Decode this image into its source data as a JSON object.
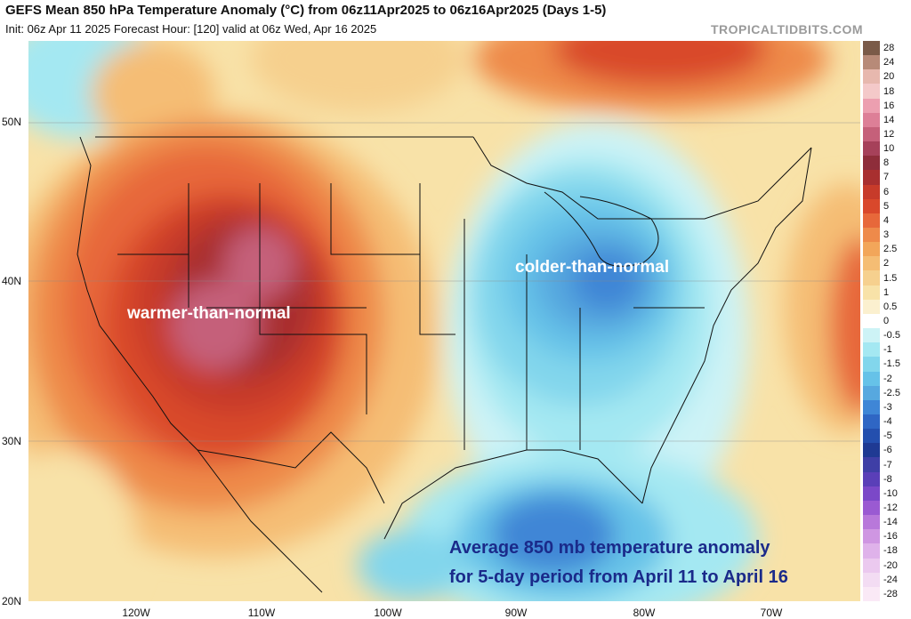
{
  "header": {
    "title": "GEFS Mean 850 hPa Temperature Anomaly (°C) from 06z11Apr2025 to 06z16Apr2025 (Days 1-5)",
    "subtitle": "Init: 06z Apr 11 2025   Forecast Hour: [120]   valid at 06z Wed, Apr 16 2025",
    "brand": "TROPICALTIDBITS.COM"
  },
  "axes": {
    "lat_labels": [
      "50N",
      "40N",
      "30N",
      "20N"
    ],
    "lon_labels": [
      "120W",
      "110W",
      "100W",
      "90W",
      "80W",
      "70W"
    ]
  },
  "legend": {
    "labels": [
      "28",
      "24",
      "20",
      "18",
      "16",
      "14",
      "12",
      "10",
      "8",
      "7",
      "6",
      "5",
      "4",
      "3",
      "2.5",
      "2",
      "1.5",
      "1",
      "0.5",
      "0",
      "-0.5",
      "-1",
      "-1.5",
      "-2",
      "-2.5",
      "-3",
      "-4",
      "-5",
      "-6",
      "-7",
      "-8",
      "-10",
      "-12",
      "-14",
      "-16",
      "-18",
      "-20",
      "-24",
      "-28"
    ],
    "colors": [
      "#7a5a48",
      "#b78a78",
      "#e7b8ae",
      "#f4c9c9",
      "#ec9fb0",
      "#dd7f97",
      "#c5607a",
      "#a6415a",
      "#8e2d3a",
      "#a82f2f",
      "#c73b2a",
      "#d9482b",
      "#e7683a",
      "#ee8a4a",
      "#f2a65a",
      "#f5bd74",
      "#f6d08e",
      "#f8e2a8",
      "#fbf0cf",
      "#ffffff",
      "#cdf3f6",
      "#a4e8f2",
      "#82d6ec",
      "#66c2e8",
      "#57a8df",
      "#3f86d6",
      "#2f66c4",
      "#244fae",
      "#1f3a93",
      "#3f3fa6",
      "#5a3fb8",
      "#7b48c8",
      "#9a5ad2",
      "#b878da",
      "#cf96e2",
      "#dfb2ea",
      "#ebc9ef",
      "#f3dcf3",
      "#fae9f6"
    ]
  },
  "annotations": {
    "warm": "warmer-than-normal",
    "cold": "colder-than-normal",
    "caption_line1": "Average 850 mb temperature anomaly",
    "caption_line2": "for 5-day period from April 11 to April 16"
  }
}
